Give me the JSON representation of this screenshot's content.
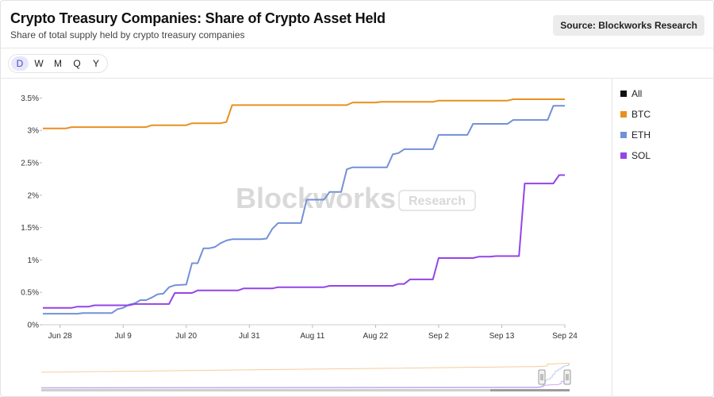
{
  "header": {
    "title": "Crypto Treasury Companies: Share of Crypto Asset Held",
    "subtitle": "Share of total supply held by crypto treasury companies",
    "source": "Source: Blockworks Research"
  },
  "range_tabs": [
    "D",
    "W",
    "M",
    "Q",
    "Y"
  ],
  "active_range": "D",
  "legend": [
    {
      "label": "All",
      "color": "#111111"
    },
    {
      "label": "BTC",
      "color": "#e8901f"
    },
    {
      "label": "ETH",
      "color": "#7391d8"
    },
    {
      "label": "SOL",
      "color": "#9444e8"
    }
  ],
  "watermark": {
    "brand": "Blockworks",
    "badge": "Research"
  },
  "chart_data": {
    "type": "line",
    "x_start": "2025-06-25",
    "x_end": "2025-09-24",
    "x_tick_labels": [
      "Jun 28",
      "Jul 9",
      "Jul 20",
      "Jul 31",
      "Aug 11",
      "Aug 22",
      "Sep 2",
      "Sep 13",
      "Sep 24"
    ],
    "x_tick_dates": [
      "2025-06-28",
      "2025-07-09",
      "2025-07-20",
      "2025-07-31",
      "2025-08-11",
      "2025-08-22",
      "2025-09-02",
      "2025-09-13",
      "2025-09-24"
    ],
    "ylim": [
      0,
      3.75
    ],
    "y_ticks": [
      0,
      0.5,
      1,
      1.5,
      2,
      2.5,
      3,
      3.5
    ],
    "y_tick_labels": [
      "0%",
      "0.5%",
      "1%",
      "1.5%",
      "2%",
      "2.5%",
      "3%",
      "3.5%"
    ],
    "grid": false,
    "legend_position": "right",
    "series": [
      {
        "name": "BTC",
        "color": "#e8901f",
        "points": [
          [
            "2025-06-25",
            3.03
          ],
          [
            "2025-06-29",
            3.03
          ],
          [
            "2025-06-30",
            3.05
          ],
          [
            "2025-07-13",
            3.05
          ],
          [
            "2025-07-14",
            3.08
          ],
          [
            "2025-07-20",
            3.08
          ],
          [
            "2025-07-21",
            3.11
          ],
          [
            "2025-07-26",
            3.11
          ],
          [
            "2025-07-27",
            3.13
          ],
          [
            "2025-07-28",
            3.39
          ],
          [
            "2025-08-17",
            3.39
          ],
          [
            "2025-08-18",
            3.43
          ],
          [
            "2025-08-22",
            3.43
          ],
          [
            "2025-08-23",
            3.44
          ],
          [
            "2025-09-01",
            3.44
          ],
          [
            "2025-09-02",
            3.46
          ],
          [
            "2025-09-14",
            3.46
          ],
          [
            "2025-09-15",
            3.48
          ],
          [
            "2025-09-24",
            3.48
          ]
        ]
      },
      {
        "name": "ETH",
        "color": "#7391d8",
        "points": [
          [
            "2025-06-25",
            0.17
          ],
          [
            "2025-07-01",
            0.17
          ],
          [
            "2025-07-02",
            0.18
          ],
          [
            "2025-07-07",
            0.18
          ],
          [
            "2025-07-08",
            0.24
          ],
          [
            "2025-07-09",
            0.26
          ],
          [
            "2025-07-10",
            0.31
          ],
          [
            "2025-07-11",
            0.33
          ],
          [
            "2025-07-12",
            0.38
          ],
          [
            "2025-07-13",
            0.38
          ],
          [
            "2025-07-14",
            0.42
          ],
          [
            "2025-07-15",
            0.47
          ],
          [
            "2025-07-16",
            0.48
          ],
          [
            "2025-07-17",
            0.58
          ],
          [
            "2025-07-18",
            0.61
          ],
          [
            "2025-07-20",
            0.62
          ],
          [
            "2025-07-21",
            0.95
          ],
          [
            "2025-07-22",
            0.95
          ],
          [
            "2025-07-23",
            1.18
          ],
          [
            "2025-07-24",
            1.18
          ],
          [
            "2025-07-25",
            1.2
          ],
          [
            "2025-07-26",
            1.26
          ],
          [
            "2025-07-27",
            1.3
          ],
          [
            "2025-07-28",
            1.32
          ],
          [
            "2025-08-02",
            1.32
          ],
          [
            "2025-08-03",
            1.33
          ],
          [
            "2025-08-04",
            1.48
          ],
          [
            "2025-08-05",
            1.57
          ],
          [
            "2025-08-09",
            1.57
          ],
          [
            "2025-08-10",
            1.93
          ],
          [
            "2025-08-13",
            1.93
          ],
          [
            "2025-08-14",
            2.05
          ],
          [
            "2025-08-16",
            2.05
          ],
          [
            "2025-08-17",
            2.4
          ],
          [
            "2025-08-18",
            2.43
          ],
          [
            "2025-08-24",
            2.43
          ],
          [
            "2025-08-25",
            2.63
          ],
          [
            "2025-08-26",
            2.65
          ],
          [
            "2025-08-27",
            2.71
          ],
          [
            "2025-09-01",
            2.71
          ],
          [
            "2025-09-02",
            2.93
          ],
          [
            "2025-09-07",
            2.93
          ],
          [
            "2025-09-08",
            3.1
          ],
          [
            "2025-09-14",
            3.1
          ],
          [
            "2025-09-15",
            3.16
          ],
          [
            "2025-09-21",
            3.16
          ],
          [
            "2025-09-22",
            3.38
          ],
          [
            "2025-09-24",
            3.38
          ]
        ]
      },
      {
        "name": "SOL",
        "color": "#9444e8",
        "points": [
          [
            "2025-06-25",
            0.26
          ],
          [
            "2025-06-30",
            0.26
          ],
          [
            "2025-07-01",
            0.28
          ],
          [
            "2025-07-03",
            0.28
          ],
          [
            "2025-07-04",
            0.3
          ],
          [
            "2025-07-10",
            0.3
          ],
          [
            "2025-07-11",
            0.32
          ],
          [
            "2025-07-17",
            0.32
          ],
          [
            "2025-07-18",
            0.49
          ],
          [
            "2025-07-21",
            0.49
          ],
          [
            "2025-07-22",
            0.53
          ],
          [
            "2025-07-29",
            0.53
          ],
          [
            "2025-07-30",
            0.56
          ],
          [
            "2025-08-04",
            0.56
          ],
          [
            "2025-08-05",
            0.58
          ],
          [
            "2025-08-13",
            0.58
          ],
          [
            "2025-08-14",
            0.6
          ],
          [
            "2025-08-25",
            0.6
          ],
          [
            "2025-08-26",
            0.63
          ],
          [
            "2025-08-27",
            0.63
          ],
          [
            "2025-08-28",
            0.7
          ],
          [
            "2025-09-01",
            0.7
          ],
          [
            "2025-09-02",
            1.03
          ],
          [
            "2025-09-08",
            1.03
          ],
          [
            "2025-09-09",
            1.05
          ],
          [
            "2025-09-11",
            1.05
          ],
          [
            "2025-09-12",
            1.06
          ],
          [
            "2025-09-16",
            1.06
          ],
          [
            "2025-09-17",
            2.18
          ],
          [
            "2025-09-22",
            2.18
          ],
          [
            "2025-09-23",
            2.31
          ],
          [
            "2025-09-24",
            2.31
          ]
        ]
      }
    ]
  }
}
